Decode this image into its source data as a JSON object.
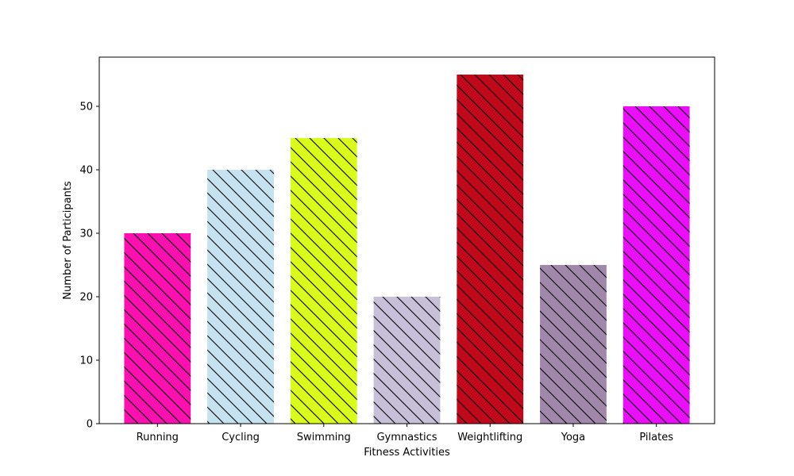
{
  "chart_data": {
    "type": "bar",
    "xlabel": "Fitness Activities",
    "ylabel": "Number of Participants",
    "categories": [
      "Running",
      "Cycling",
      "Swimming",
      "Gymnastics",
      "Weightlifting",
      "Yoga",
      "Pilates"
    ],
    "values": [
      30,
      40,
      45,
      20,
      55,
      25,
      50
    ],
    "colors": [
      "#fa11b0",
      "#c4e2f0",
      "#d9fb1e",
      "#c8bfd9",
      "#c00a1c",
      "#a287ac",
      "#e90ff9"
    ],
    "hatch": "diagonal",
    "ylim": [
      0,
      57.75
    ],
    "yticks": [
      0,
      10,
      20,
      30,
      40,
      50
    ],
    "grid": false
  }
}
